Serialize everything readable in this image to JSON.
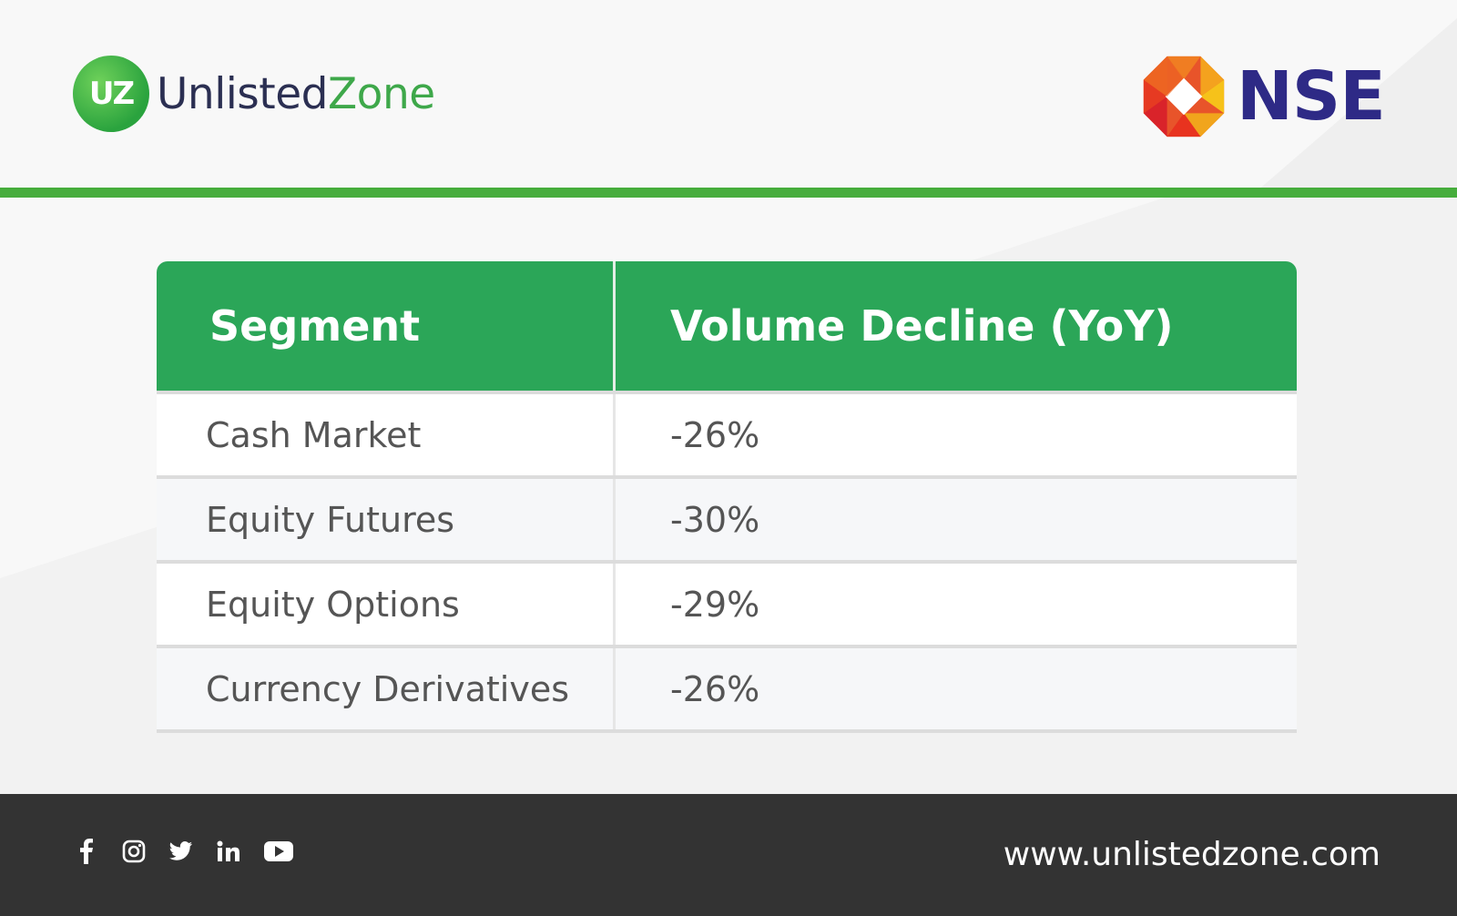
{
  "brand": {
    "uz_badge": "UZ",
    "uz_name_part1": "Unlisted",
    "uz_name_part2": "Zone",
    "nse_name": "NSE"
  },
  "table": {
    "headers": [
      "Segment",
      "Volume Decline (YoY)"
    ],
    "rows": [
      {
        "segment": "Cash Market",
        "decline": "-26%"
      },
      {
        "segment": "Equity Futures",
        "decline": "-30%"
      },
      {
        "segment": "Equity Options",
        "decline": "-29%"
      },
      {
        "segment": "Currency Derivatives",
        "decline": "-26%"
      }
    ]
  },
  "footer": {
    "social_icons": [
      "facebook-icon",
      "instagram-icon",
      "twitter-icon",
      "linkedin-icon",
      "youtube-icon"
    ],
    "website": "www.unlistedzone.com"
  },
  "colors": {
    "brand_green": "#46ad3c",
    "header_green": "#2ba658",
    "nse_blue": "#2e2a86",
    "footer_dark": "#333333"
  }
}
